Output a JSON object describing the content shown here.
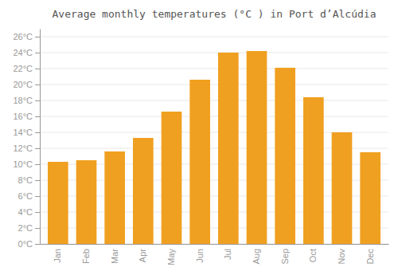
{
  "chart_data": {
    "type": "bar",
    "title": "Average monthly temperatures (°C ) in Port d’Alcúdia",
    "categories": [
      "Jan",
      "Feb",
      "Mar",
      "Apr",
      "May",
      "Jun",
      "Jul",
      "Aug",
      "Sep",
      "Oct",
      "Nov",
      "Dec"
    ],
    "values": [
      10.3,
      10.5,
      11.6,
      13.3,
      16.6,
      20.6,
      24.0,
      24.2,
      22.1,
      18.4,
      14.0,
      11.5
    ],
    "color": "#F0A020",
    "ylim": [
      0,
      27
    ],
    "yticks": [
      {
        "value": 0,
        "label": "0°C"
      },
      {
        "value": 2,
        "label": "2°C"
      },
      {
        "value": 4,
        "label": "4°C"
      },
      {
        "value": 6,
        "label": "6°C"
      },
      {
        "value": 8,
        "label": "8°C"
      },
      {
        "value": 10,
        "label": "10°C"
      },
      {
        "value": 12,
        "label": "12°C"
      },
      {
        "value": 14,
        "label": "14°C"
      },
      {
        "value": 16,
        "label": "16°C"
      },
      {
        "value": 18,
        "label": "18°C"
      },
      {
        "value": 20,
        "label": "20°C"
      },
      {
        "value": 22,
        "label": "22°C"
      },
      {
        "value": 24,
        "label": "24°C"
      },
      {
        "value": 26,
        "label": "26°C"
      }
    ],
    "grid": true
  }
}
